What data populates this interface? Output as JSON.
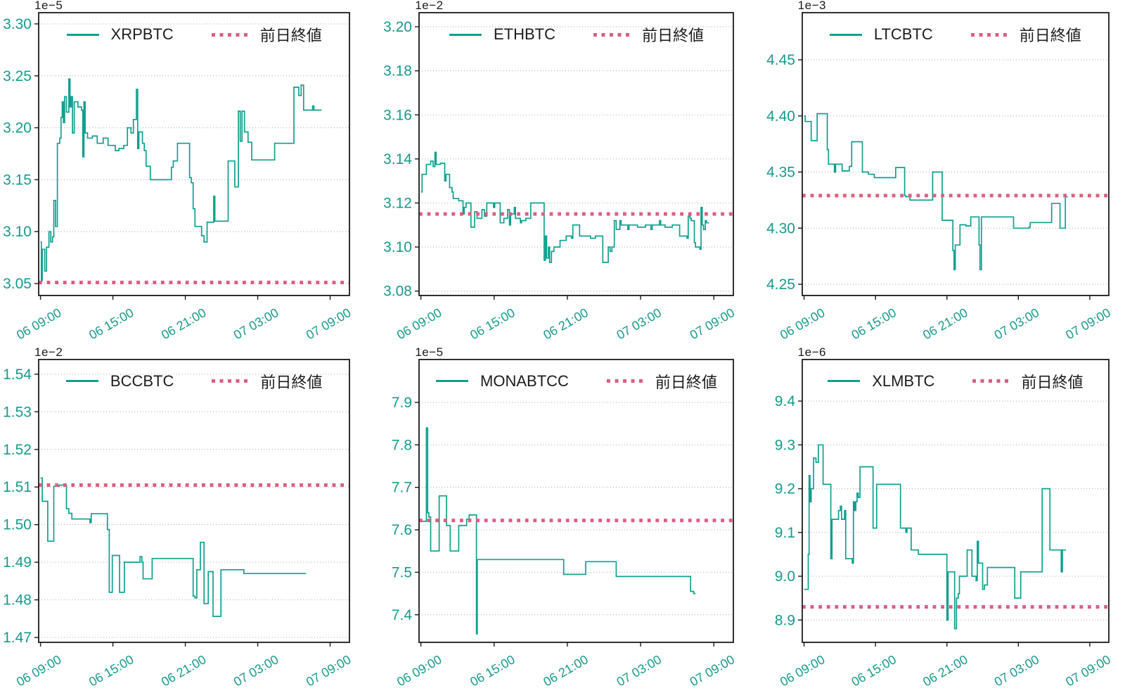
{
  "figure": {
    "background": "#ffffff",
    "line_color": "#0fa08f",
    "tick_color": "#17998a",
    "pink": "#df5c82",
    "grid_color": "#a6a6a6",
    "axis_color": "#1a1a1a",
    "prev_label": "前日終値",
    "x_ticks": [
      "06 09:00",
      "06 15:00",
      "06 21:00",
      "07 03:00",
      "07 09:00"
    ],
    "x_tick_hours": [
      0,
      6,
      12,
      18,
      24
    ],
    "xlim": [
      -0.15,
      25.6
    ]
  },
  "chart_data": [
    {
      "type": "line",
      "symbol": "XRPBTC",
      "unit_offset": "1e−5",
      "legend": [
        "XRPBTC",
        "前日終値"
      ],
      "prev_close": 3.051,
      "ylim": [
        3.0385,
        3.3108
      ],
      "y_ticks": [
        3.05,
        3.1,
        3.15,
        3.2,
        3.25,
        3.3
      ],
      "y_decimals": 2,
      "xlabel_unit": "hours from 06 09:00",
      "points": [
        [
          0,
          3.09
        ],
        [
          0.07,
          3.053
        ],
        [
          0.15,
          3.083
        ],
        [
          0.35,
          3.062
        ],
        [
          0.5,
          3.085
        ],
        [
          0.7,
          3.1
        ],
        [
          0.85,
          3.09
        ],
        [
          1.0,
          3.095
        ],
        [
          1.1,
          3.13
        ],
        [
          1.25,
          3.105
        ],
        [
          1.4,
          3.185
        ],
        [
          1.6,
          3.19
        ],
        [
          1.7,
          3.21
        ],
        [
          1.8,
          3.225
        ],
        [
          1.9,
          3.205
        ],
        [
          2.0,
          3.23
        ],
        [
          2.15,
          3.215
        ],
        [
          2.35,
          3.247
        ],
        [
          2.45,
          3.22
        ],
        [
          2.55,
          3.23
        ],
        [
          2.65,
          3.195
        ],
        [
          2.8,
          3.225
        ],
        [
          3.1,
          3.22
        ],
        [
          3.4,
          3.217
        ],
        [
          3.5,
          3.172
        ],
        [
          3.6,
          3.225
        ],
        [
          3.7,
          3.195
        ],
        [
          3.9,
          3.19
        ],
        [
          4.3,
          3.192
        ],
        [
          4.7,
          3.185
        ],
        [
          5.2,
          3.19
        ],
        [
          5.6,
          3.183
        ],
        [
          6.2,
          3.178
        ],
        [
          6.5,
          3.18
        ],
        [
          6.9,
          3.183
        ],
        [
          7.2,
          3.2
        ],
        [
          7.5,
          3.195
        ],
        [
          7.7,
          3.208
        ],
        [
          7.95,
          3.237
        ],
        [
          8.05,
          3.18
        ],
        [
          8.15,
          3.196
        ],
        [
          8.45,
          3.185
        ],
        [
          8.6,
          3.178
        ],
        [
          8.75,
          3.163
        ],
        [
          9.1,
          3.15
        ],
        [
          10.85,
          3.162
        ],
        [
          11.0,
          3.168
        ],
        [
          11.35,
          3.185
        ],
        [
          12.35,
          3.152
        ],
        [
          12.5,
          3.147
        ],
        [
          12.65,
          3.122
        ],
        [
          12.8,
          3.105
        ],
        [
          13.35,
          3.096
        ],
        [
          13.55,
          3.09
        ],
        [
          13.8,
          3.109
        ],
        [
          14.35,
          3.134
        ],
        [
          14.45,
          3.11
        ],
        [
          15.55,
          3.168
        ],
        [
          16.1,
          3.143
        ],
        [
          16.4,
          3.216
        ],
        [
          16.55,
          3.187
        ],
        [
          16.7,
          3.216
        ],
        [
          16.9,
          3.196
        ],
        [
          17.2,
          3.186
        ],
        [
          17.5,
          3.169
        ],
        [
          19.4,
          3.185
        ],
        [
          21.0,
          3.239
        ],
        [
          21.4,
          3.231
        ],
        [
          21.6,
          3.241
        ],
        [
          21.8,
          3.217
        ],
        [
          22.0,
          3.217
        ],
        [
          22.55,
          3.221
        ],
        [
          22.65,
          3.217
        ],
        [
          23.3,
          3.217
        ]
      ]
    },
    {
      "type": "line",
      "symbol": "ETHBTC",
      "unit_offset": "1e−2",
      "legend": [
        "ETHBTC",
        "前日終値"
      ],
      "prev_close": 3.115,
      "ylim": [
        3.078,
        3.2064
      ],
      "y_ticks": [
        3.08,
        3.1,
        3.12,
        3.14,
        3.16,
        3.18,
        3.2
      ],
      "y_decimals": 2,
      "points": [
        [
          0,
          3.125
        ],
        [
          0.1,
          3.133
        ],
        [
          0.45,
          3.1375
        ],
        [
          0.8,
          3.139
        ],
        [
          1.0,
          3.1365
        ],
        [
          1.15,
          3.143
        ],
        [
          1.25,
          3.1375
        ],
        [
          1.6,
          3.138
        ],
        [
          1.95,
          3.13
        ],
        [
          2.05,
          3.133
        ],
        [
          2.35,
          3.127
        ],
        [
          2.55,
          3.125
        ],
        [
          2.65,
          3.122
        ],
        [
          3.1,
          3.121
        ],
        [
          3.45,
          3.115
        ],
        [
          3.55,
          3.118
        ],
        [
          3.7,
          3.12
        ],
        [
          4.1,
          3.109
        ],
        [
          4.4,
          3.116
        ],
        [
          4.6,
          3.113
        ],
        [
          5.0,
          3.117
        ],
        [
          5.2,
          3.114
        ],
        [
          5.4,
          3.12
        ],
        [
          5.95,
          3.118
        ],
        [
          6.05,
          3.12
        ],
        [
          6.5,
          3.111
        ],
        [
          6.8,
          3.113
        ],
        [
          7.1,
          3.117
        ],
        [
          7.25,
          3.11
        ],
        [
          7.35,
          3.115
        ],
        [
          7.65,
          3.118
        ],
        [
          7.75,
          3.113
        ],
        [
          8.15,
          3.111
        ],
        [
          8.25,
          3.112
        ],
        [
          8.6,
          3.113
        ],
        [
          9.0,
          3.12
        ],
        [
          10.1,
          3.094
        ],
        [
          10.2,
          3.105
        ],
        [
          10.3,
          3.095
        ],
        [
          10.45,
          3.1
        ],
        [
          10.55,
          3.093
        ],
        [
          10.7,
          3.098
        ],
        [
          10.9,
          3.1
        ],
        [
          11.4,
          3.103
        ],
        [
          11.9,
          3.105
        ],
        [
          12.35,
          3.104
        ],
        [
          12.45,
          3.11
        ],
        [
          13.0,
          3.105
        ],
        [
          13.9,
          3.104
        ],
        [
          14.3,
          3.105
        ],
        [
          14.9,
          3.093
        ],
        [
          15.35,
          3.1
        ],
        [
          15.5,
          3.098
        ],
        [
          15.65,
          3.1
        ],
        [
          15.85,
          3.112
        ],
        [
          16.0,
          3.108
        ],
        [
          16.3,
          3.112
        ],
        [
          16.4,
          3.11
        ],
        [
          16.95,
          3.108
        ],
        [
          17.05,
          3.11
        ],
        [
          17.75,
          3.109
        ],
        [
          18.4,
          3.11
        ],
        [
          18.85,
          3.108
        ],
        [
          18.95,
          3.11
        ],
        [
          19.55,
          3.112
        ],
        [
          19.65,
          3.11
        ],
        [
          20.0,
          3.109
        ],
        [
          20.6,
          3.11
        ],
        [
          21.2,
          3.105
        ],
        [
          21.8,
          3.104
        ],
        [
          21.9,
          3.114
        ],
        [
          22.05,
          3.113
        ],
        [
          22.15,
          3.112
        ],
        [
          22.4,
          3.102
        ],
        [
          22.5,
          3.1
        ],
        [
          22.85,
          3.099
        ],
        [
          22.95,
          3.118
        ],
        [
          23.05,
          3.11
        ],
        [
          23.15,
          3.108
        ],
        [
          23.3,
          3.112
        ],
        [
          23.4,
          3.111
        ],
        [
          23.6,
          3.111
        ]
      ]
    },
    {
      "type": "line",
      "symbol": "LTCBTC",
      "unit_offset": "1e−3",
      "legend": [
        "LTCBTC",
        "前日終値"
      ],
      "prev_close": 4.329,
      "ylim": [
        4.24,
        4.492
      ],
      "y_ticks": [
        4.25,
        4.3,
        4.35,
        4.4,
        4.45
      ],
      "y_decimals": 2,
      "points": [
        [
          0,
          4.4
        ],
        [
          0.1,
          4.395
        ],
        [
          0.6,
          4.378
        ],
        [
          1.1,
          4.402
        ],
        [
          1.95,
          4.37
        ],
        [
          2.05,
          4.357
        ],
        [
          2.55,
          4.35
        ],
        [
          2.65,
          4.357
        ],
        [
          3.2,
          4.351
        ],
        [
          3.8,
          4.355
        ],
        [
          4.0,
          4.377
        ],
        [
          4.9,
          4.35
        ],
        [
          5.4,
          4.348
        ],
        [
          5.9,
          4.345
        ],
        [
          7.7,
          4.354
        ],
        [
          8.45,
          4.329
        ],
        [
          8.55,
          4.328
        ],
        [
          8.9,
          4.325
        ],
        [
          10.8,
          4.35
        ],
        [
          11.6,
          4.307
        ],
        [
          12.5,
          4.28
        ],
        [
          12.6,
          4.263
        ],
        [
          12.7,
          4.285
        ],
        [
          13.1,
          4.303
        ],
        [
          13.6,
          4.302
        ],
        [
          14.0,
          4.31
        ],
        [
          14.7,
          4.285
        ],
        [
          14.78,
          4.263
        ],
        [
          14.9,
          4.31
        ],
        [
          17.6,
          4.3
        ],
        [
          18.9,
          4.301
        ],
        [
          19.0,
          4.305
        ],
        [
          20.8,
          4.322
        ],
        [
          21.5,
          4.3
        ],
        [
          21.95,
          4.328
        ],
        [
          22.15,
          4.328
        ]
      ]
    },
    {
      "type": "line",
      "symbol": "BCCBTC",
      "unit_offset": "1e−2",
      "legend": [
        "BCCBTC",
        "前日終値"
      ],
      "prev_close": 1.5105,
      "ylim": [
        1.4687,
        1.5439
      ],
      "y_ticks": [
        1.47,
        1.48,
        1.49,
        1.5,
        1.51,
        1.52,
        1.53,
        1.54
      ],
      "y_decimals": 2,
      "points": [
        [
          0,
          1.5124
        ],
        [
          0.15,
          1.5062
        ],
        [
          0.6,
          1.4956
        ],
        [
          1.1,
          1.5102
        ],
        [
          1.55,
          1.5105
        ],
        [
          2.15,
          1.5042
        ],
        [
          2.35,
          1.503
        ],
        [
          2.6,
          1.5015
        ],
        [
          4.1,
          1.5005
        ],
        [
          4.2,
          1.5029
        ],
        [
          5.55,
          1.4987
        ],
        [
          5.7,
          1.482
        ],
        [
          5.95,
          1.4918
        ],
        [
          6.55,
          1.482
        ],
        [
          6.95,
          1.49
        ],
        [
          8.25,
          1.4915
        ],
        [
          8.4,
          1.49
        ],
        [
          8.5,
          1.4856
        ],
        [
          9.25,
          1.491
        ],
        [
          12.65,
          1.481
        ],
        [
          12.8,
          1.4805
        ],
        [
          12.95,
          1.488
        ],
        [
          13.25,
          1.4953
        ],
        [
          13.55,
          1.479
        ],
        [
          13.9,
          1.4875
        ],
        [
          14.3,
          1.4756
        ],
        [
          14.95,
          1.488
        ],
        [
          16.85,
          1.487
        ],
        [
          22.0,
          1.487
        ]
      ]
    },
    {
      "type": "line",
      "symbol": "MONABTCC",
      "unit_offset": "1e−5",
      "legend": [
        "MONABTCC",
        "前日終値"
      ],
      "prev_close": 7.622,
      "ylim": [
        7.335,
        8.001
      ],
      "y_ticks": [
        7.4,
        7.5,
        7.6,
        7.7,
        7.8,
        7.9
      ],
      "y_decimals": 1,
      "points": [
        [
          0,
          7.62
        ],
        [
          0.45,
          7.84
        ],
        [
          0.55,
          7.64
        ],
        [
          0.65,
          7.63
        ],
        [
          0.8,
          7.55
        ],
        [
          1.5,
          7.68
        ],
        [
          2.1,
          7.61
        ],
        [
          2.4,
          7.55
        ],
        [
          3.1,
          7.61
        ],
        [
          3.75,
          7.625
        ],
        [
          3.95,
          7.635
        ],
        [
          4.55,
          7.355
        ],
        [
          4.62,
          7.53
        ],
        [
          11.7,
          7.495
        ],
        [
          13.5,
          7.525
        ],
        [
          16.0,
          7.49
        ],
        [
          22.1,
          7.455
        ],
        [
          22.35,
          7.45
        ],
        [
          22.5,
          7.45
        ]
      ]
    },
    {
      "type": "line",
      "symbol": "XLMBTC",
      "unit_offset": "1e−6",
      "legend": [
        "XLMBTC",
        "前日終値"
      ],
      "prev_close": 8.93,
      "ylim": [
        8.849,
        9.495
      ],
      "y_ticks": [
        8.9,
        9.0,
        9.1,
        9.2,
        9.3,
        9.4
      ],
      "y_decimals": 1,
      "points": [
        [
          0,
          8.97
        ],
        [
          0.35,
          9.05
        ],
        [
          0.42,
          9.23
        ],
        [
          0.5,
          9.17
        ],
        [
          0.6,
          9.2
        ],
        [
          0.8,
          9.27
        ],
        [
          1.0,
          9.26
        ],
        [
          1.2,
          9.3
        ],
        [
          1.6,
          9.21
        ],
        [
          2.25,
          9.04
        ],
        [
          2.35,
          9.13
        ],
        [
          2.9,
          9.15
        ],
        [
          3.05,
          9.16
        ],
        [
          3.15,
          9.13
        ],
        [
          3.4,
          9.15
        ],
        [
          3.5,
          9.04
        ],
        [
          4.05,
          9.03
        ],
        [
          4.15,
          9.17
        ],
        [
          4.25,
          9.15
        ],
        [
          4.35,
          9.17
        ],
        [
          4.45,
          9.19
        ],
        [
          4.55,
          9.18
        ],
        [
          4.7,
          9.25
        ],
        [
          5.8,
          9.11
        ],
        [
          6.1,
          9.21
        ],
        [
          8.1,
          9.11
        ],
        [
          8.55,
          9.1
        ],
        [
          8.65,
          9.11
        ],
        [
          9.0,
          9.06
        ],
        [
          9.6,
          9.05
        ],
        [
          12.0,
          8.9
        ],
        [
          12.1,
          9.01
        ],
        [
          12.65,
          8.88
        ],
        [
          12.8,
          8.95
        ],
        [
          12.95,
          8.96
        ],
        [
          13.05,
          9.0
        ],
        [
          13.7,
          9.06
        ],
        [
          14.1,
          9.0
        ],
        [
          14.45,
          8.99
        ],
        [
          14.55,
          9.08
        ],
        [
          14.65,
          9.03
        ],
        [
          15.0,
          8.97
        ],
        [
          15.15,
          8.98
        ],
        [
          15.4,
          9.02
        ],
        [
          17.7,
          8.95
        ],
        [
          18.2,
          9.01
        ],
        [
          20.0,
          9.2
        ],
        [
          20.65,
          9.06
        ],
        [
          21.6,
          9.01
        ],
        [
          21.7,
          9.06
        ],
        [
          22.0,
          9.06
        ]
      ]
    }
  ]
}
